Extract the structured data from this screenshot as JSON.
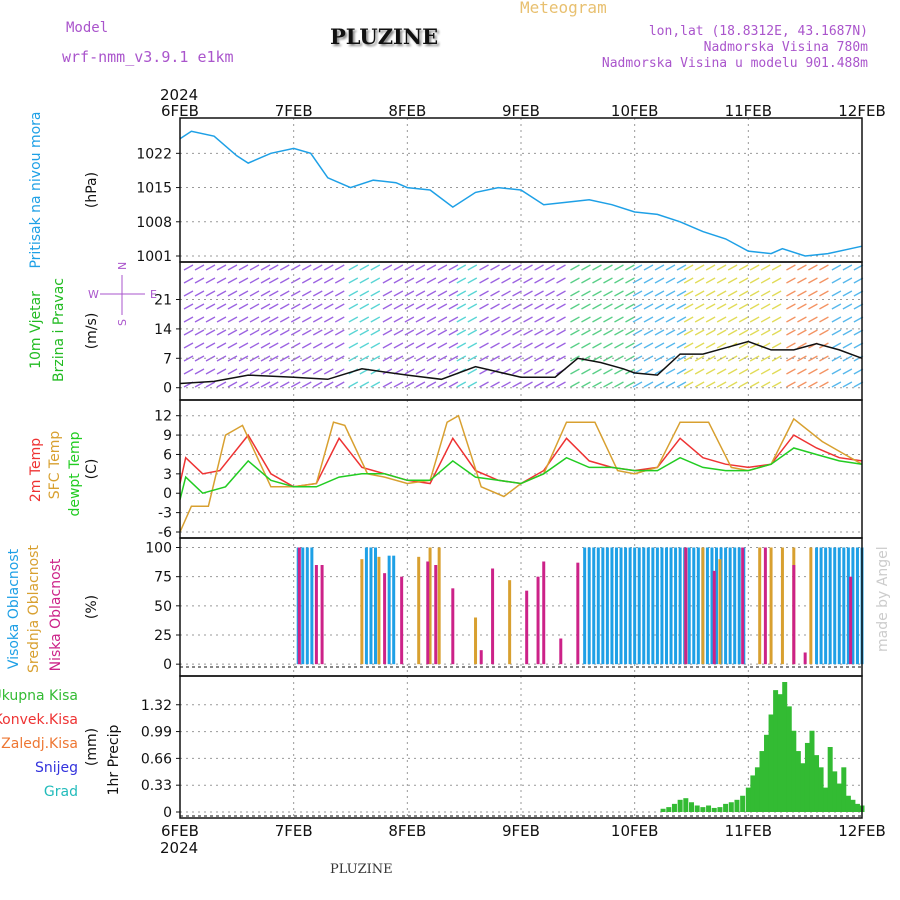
{
  "header": {
    "model_label": "Model",
    "model_value": "wrf-nmm_v3.9.1  e1km",
    "title": "PLUZINE",
    "subtitle": "Meteogram",
    "lonlat": "lon,lat (18.8312E, 43.1687N)",
    "elev_real": "Nadmorska Visina 780m",
    "elev_model": "Nadmorska Visina u modelu 901.488m",
    "watermark": "made by Angel",
    "footer": "PLUZINE",
    "year": "2024"
  },
  "colors": {
    "pressure": "#1ea0e6",
    "wind_axis": "#22bb22",
    "temp_2m": "#ee3333",
    "temp_sfc": "#d8a030",
    "dewpoint": "#22cc22",
    "cloud_high": "#1ea0e6",
    "cloud_mid": "#d8a030",
    "cloud_low": "#cc2288",
    "precip_total": "#33bb33",
    "precip_conv": "#ee3333",
    "precip_frz": "#ee7733",
    "precip_snow": "#3333dd",
    "precip_hail": "#22bbbb",
    "model_text": "#aa55cc",
    "subtitle_text": "#e8c070"
  },
  "chart_data": {
    "type": "line",
    "x_axis": {
      "labels": [
        "6FEB",
        "7FEB",
        "8FEB",
        "9FEB",
        "10FEB",
        "11FEB",
        "12FEB"
      ],
      "year": "2024"
    },
    "panels": [
      {
        "id": "pressure",
        "ylabel_lines": [
          "Pritisak na nivou mora"
        ],
        "unit": "(hPa)",
        "ylim": [
          1001,
          1028
        ],
        "yticks": [
          1001,
          1008,
          1015,
          1022
        ],
        "series": [
          {
            "name": "Pritisak na nivou mora",
            "color_key": "pressure",
            "x": [
              0,
              0.1,
              0.3,
              0.5,
              0.6,
              0.8,
              1.0,
              1.15,
              1.3,
              1.5,
              1.7,
              1.9,
              2.0,
              2.2,
              2.4,
              2.6,
              2.8,
              3.0,
              3.2,
              3.4,
              3.6,
              3.8,
              4.0,
              4.2,
              4.4,
              4.6,
              4.8,
              5.0,
              5.2,
              5.3,
              5.5,
              5.7,
              5.9,
              6.0
            ],
            "y": [
              1025,
              1026.5,
              1025.5,
              1021.5,
              1020,
              1022,
              1023,
              1022,
              1017,
              1015,
              1016.5,
              1016,
              1015,
              1014.5,
              1011,
              1014,
              1015,
              1014.5,
              1011.5,
              1012,
              1012.5,
              1011.5,
              1010,
              1009.5,
              1008,
              1006,
              1004.5,
              1002,
              1001.5,
              1002.5,
              1001,
              1001.5,
              1002.5,
              1003
            ]
          }
        ]
      },
      {
        "id": "wind",
        "ylabel_lines": [
          "10m Vjetar",
          "Brzina i Pravac"
        ],
        "unit": "(m/s)",
        "ylim": [
          -1.5,
          28.5
        ],
        "yticks": [
          0,
          7,
          14,
          21
        ],
        "compass": {
          "n": "N",
          "s": "S",
          "w": "W",
          "e": "E"
        },
        "series": [
          {
            "name": "speed",
            "color_key": "wind_axis",
            "x": [
              0,
              0.3,
              0.6,
              1.0,
              1.3,
              1.6,
              2.0,
              2.3,
              2.6,
              3.0,
              3.3,
              3.5,
              3.7,
              3.9,
              4.0,
              4.2,
              4.4,
              4.6,
              4.8,
              5.0,
              5.2,
              5.4,
              5.6,
              5.8,
              6.0
            ],
            "y": [
              1,
              1.5,
              3,
              2.5,
              2,
              4.5,
              3,
              2,
              5,
              2.5,
              2.5,
              7,
              6,
              4.5,
              3.5,
              3,
              8,
              8,
              9.5,
              11,
              9,
              9,
              10.5,
              9,
              7
            ]
          }
        ]
      },
      {
        "id": "temperature",
        "ylabel_lines": [
          "2m Temp",
          "SFC Temp",
          "dewpt Temp"
        ],
        "unit": "(C)",
        "ylim": [
          -6,
          13.5
        ],
        "yticks": [
          -6,
          -3,
          0,
          3,
          6,
          9,
          12
        ],
        "series": [
          {
            "name": "2m Temp",
            "color_key": "temp_2m",
            "x": [
              0,
              0.05,
              0.2,
              0.35,
              0.6,
              0.8,
              1.0,
              1.2,
              1.4,
              1.6,
              1.8,
              2.0,
              2.2,
              2.4,
              2.6,
              2.8,
              3.0,
              3.2,
              3.4,
              3.6,
              3.8,
              4.0,
              4.2,
              4.4,
              4.6,
              4.8,
              5.0,
              5.2,
              5.4,
              5.6,
              5.8,
              6.0
            ],
            "y": [
              1.5,
              5.5,
              3,
              3.5,
              9,
              3,
              1,
              1.5,
              8.5,
              4,
              3,
              2,
              1.5,
              8.5,
              3.5,
              2,
              1.5,
              3.5,
              8.5,
              5,
              4,
              3.5,
              4,
              8.5,
              5.5,
              4.5,
              4,
              4.5,
              9,
              7,
              5.5,
              5
            ]
          },
          {
            "name": "SFC Temp",
            "color_key": "temp_sfc",
            "x": [
              0,
              0.1,
              0.25,
              0.4,
              0.55,
              0.8,
              1.0,
              1.2,
              1.35,
              1.45,
              1.65,
              1.8,
              2.0,
              2.2,
              2.35,
              2.45,
              2.65,
              2.85,
              3.0,
              3.2,
              3.4,
              3.65,
              3.85,
              4.0,
              4.2,
              4.4,
              4.65,
              4.85,
              5.0,
              5.2,
              5.4,
              5.65,
              5.85,
              6.0
            ],
            "y": [
              -6,
              -2,
              -2,
              9,
              10.5,
              1,
              1,
              1.5,
              11,
              10.5,
              3,
              2.5,
              1.5,
              2,
              11,
              12,
              1,
              -0.5,
              1.5,
              3,
              11,
              11,
              3.5,
              3,
              4,
              11,
              11,
              4,
              3.5,
              4.5,
              11.5,
              8,
              6,
              4.5
            ]
          },
          {
            "name": "dewpt Temp",
            "color_key": "dewpoint",
            "x": [
              0,
              0.05,
              0.2,
              0.4,
              0.6,
              0.8,
              1.0,
              1.2,
              1.4,
              1.6,
              1.8,
              2.0,
              2.2,
              2.4,
              2.6,
              2.8,
              3.0,
              3.2,
              3.4,
              3.6,
              3.8,
              4.0,
              4.2,
              4.4,
              4.6,
              4.8,
              5.0,
              5.2,
              5.4,
              5.6,
              5.8,
              6.0
            ],
            "y": [
              -1,
              2.5,
              0,
              1,
              5,
              2,
              1,
              1,
              2.5,
              3,
              3,
              2,
              2,
              5,
              2.5,
              2,
              1.5,
              3,
              5.5,
              4,
              4,
              3.5,
              3.5,
              5.5,
              4,
              3.5,
              3.5,
              4.5,
              7,
              6,
              5,
              4.5
            ]
          }
        ]
      },
      {
        "id": "clouds",
        "ylabel_lines": [
          "Visoka Oblacnost",
          "Srednja Oblacnost",
          "Niska Oblacnost"
        ],
        "unit": "(%)",
        "ylim": [
          -5,
          103
        ],
        "yticks": [
          0,
          25,
          50,
          75,
          100
        ],
        "series": [
          {
            "name": "Visoka Oblacnost",
            "color_key": "cloud_high",
            "x": [
              1.04,
              1.08,
              1.12,
              1.16,
              1.64,
              1.68,
              1.72,
              1.84,
              1.88,
              3.56,
              3.6,
              3.64,
              3.68,
              3.72,
              3.76,
              3.8,
              3.84,
              3.88,
              3.92,
              3.96,
              4.0,
              4.04,
              4.08,
              4.12,
              4.16,
              4.2,
              4.24,
              4.28,
              4.32,
              4.36,
              4.4,
              4.44,
              4.48,
              4.52,
              4.56,
              4.6,
              4.64,
              4.68,
              4.72,
              4.76,
              4.8,
              4.84,
              4.88,
              4.92,
              4.96,
              5.6,
              5.64,
              5.68,
              5.72,
              5.76,
              5.8,
              5.84,
              5.88,
              5.92,
              5.96,
              6.0
            ],
            "y": [
              100,
              100,
              100,
              100,
              100,
              100,
              100,
              93,
              93,
              100,
              100,
              100,
              100,
              100,
              100,
              100,
              100,
              100,
              100,
              100,
              100,
              100,
              100,
              100,
              100,
              100,
              100,
              100,
              100,
              100,
              100,
              100,
              100,
              100,
              100,
              100,
              100,
              100,
              100,
              100,
              100,
              100,
              100,
              100,
              100,
              100,
              100,
              100,
              100,
              100,
              100,
              100,
              100,
              100,
              100,
              100
            ]
          },
          {
            "name": "Srednja Oblacnost",
            "color_key": "cloud_mid",
            "x": [
              1.6,
              1.75,
              2.1,
              2.2,
              2.28,
              2.6,
              2.9,
              4.45,
              4.6,
              4.75,
              5.1,
              5.2,
              5.3,
              5.4,
              5.55
            ],
            "y": [
              90,
              92,
              92,
              100,
              100,
              40,
              72,
              100,
              100,
              90,
              100,
              100,
              100,
              100,
              100
            ]
          },
          {
            "name": "Niska Oblacnost",
            "color_key": "cloud_low",
            "x": [
              1.05,
              1.2,
              1.25,
              1.8,
              1.95,
              2.18,
              2.25,
              2.4,
              2.65,
              2.75,
              3.05,
              3.15,
              3.2,
              3.35,
              3.5,
              4.45,
              4.7,
              4.95,
              5.15,
              5.4,
              5.5,
              5.9
            ],
            "y": [
              100,
              85,
              85,
              78,
              75,
              88,
              85,
              65,
              12,
              82,
              63,
              75,
              88,
              22,
              87,
              100,
              80,
              100,
              100,
              85,
              10,
              75
            ]
          }
        ]
      },
      {
        "id": "precip",
        "ylabel_lines": [
          "1hr Precip"
        ],
        "unit": "(mm)",
        "ylim": [
          0,
          1.6
        ],
        "yticks": [
          0,
          0.33,
          0.66,
          0.99,
          1.32
        ],
        "legend": [
          "Ukupna Kisa",
          "Konvek.Kisa",
          "Zaledj.Kisa",
          "Snijeg",
          "Grad"
        ],
        "series": [
          {
            "name": "Ukupna Kisa",
            "color_key": "precip_total",
            "x": [
              4.25,
              4.3,
              4.35,
              4.4,
              4.45,
              4.5,
              4.55,
              4.6,
              4.65,
              4.7,
              4.75,
              4.8,
              4.85,
              4.9,
              4.95,
              5.0,
              5.04,
              5.08,
              5.12,
              5.16,
              5.2,
              5.24,
              5.28,
              5.32,
              5.36,
              5.4,
              5.44,
              5.48,
              5.52,
              5.56,
              5.6,
              5.64,
              5.68,
              5.72,
              5.76,
              5.8,
              5.84,
              5.88,
              5.92,
              5.96,
              6.0
            ],
            "y": [
              0.04,
              0.06,
              0.1,
              0.15,
              0.17,
              0.12,
              0.08,
              0.06,
              0.08,
              0.05,
              0.06,
              0.1,
              0.12,
              0.15,
              0.2,
              0.3,
              0.45,
              0.55,
              0.75,
              0.95,
              1.2,
              1.5,
              1.45,
              1.6,
              1.3,
              1.0,
              0.75,
              0.6,
              0.85,
              1.0,
              0.7,
              0.55,
              0.3,
              0.8,
              0.5,
              0.35,
              0.55,
              0.2,
              0.15,
              0.1,
              0.08
            ]
          }
        ]
      }
    ]
  }
}
